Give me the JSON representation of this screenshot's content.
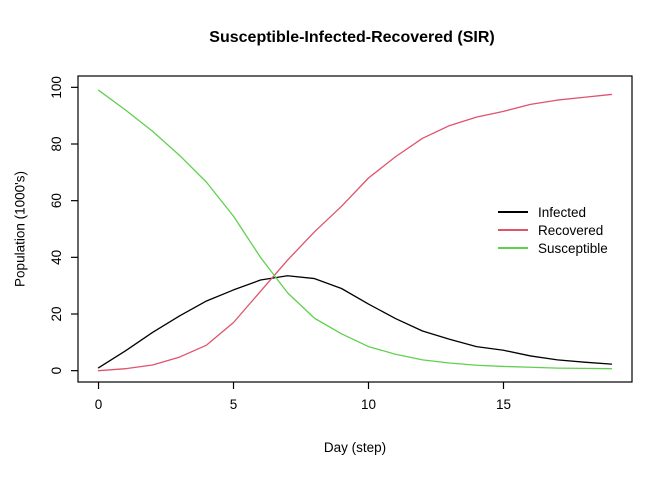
{
  "chart_data": {
    "type": "line",
    "title": "Susceptible-Infected-Recovered (SIR)",
    "xlabel": "Day (step)",
    "ylabel": "Population (1000's)",
    "x": [
      0,
      1,
      2,
      3,
      4,
      5,
      6,
      7,
      8,
      9,
      10,
      11,
      12,
      13,
      14,
      15,
      16,
      17,
      18,
      19
    ],
    "series": [
      {
        "name": "Infected",
        "color": "#000000",
        "values": [
          1,
          7,
          13.5,
          19.3,
          24.6,
          28.5,
          32,
          33.5,
          32.5,
          29,
          23.5,
          18.4,
          14,
          11.1,
          8.5,
          7.2,
          5.2,
          3.8,
          3,
          2.3
        ]
      },
      {
        "name": "Recovered",
        "color": "#DF536B",
        "values": [
          0,
          0.7,
          2,
          4.8,
          9,
          17,
          28,
          39,
          49,
          58,
          68,
          75.5,
          82,
          86.5,
          89.5,
          91.5,
          94,
          95.5,
          96.5,
          97.5
        ]
      },
      {
        "name": "Susceptible",
        "color": "#61D04F",
        "values": [
          99,
          92,
          84.5,
          76,
          66.5,
          54.5,
          40,
          27.5,
          18.5,
          13,
          8.5,
          5.8,
          3.8,
          2.7,
          1.9,
          1.5,
          1.2,
          0.9,
          0.8,
          0.7
        ]
      }
    ],
    "xticks": [
      0,
      5,
      10,
      15
    ],
    "yticks": [
      0,
      20,
      40,
      60,
      80,
      100
    ],
    "xlim": [
      -0.76,
      19.76
    ],
    "ylim": [
      -4,
      104
    ],
    "grid": false,
    "legend_position": "right-middle",
    "axis_color": "#000000"
  }
}
